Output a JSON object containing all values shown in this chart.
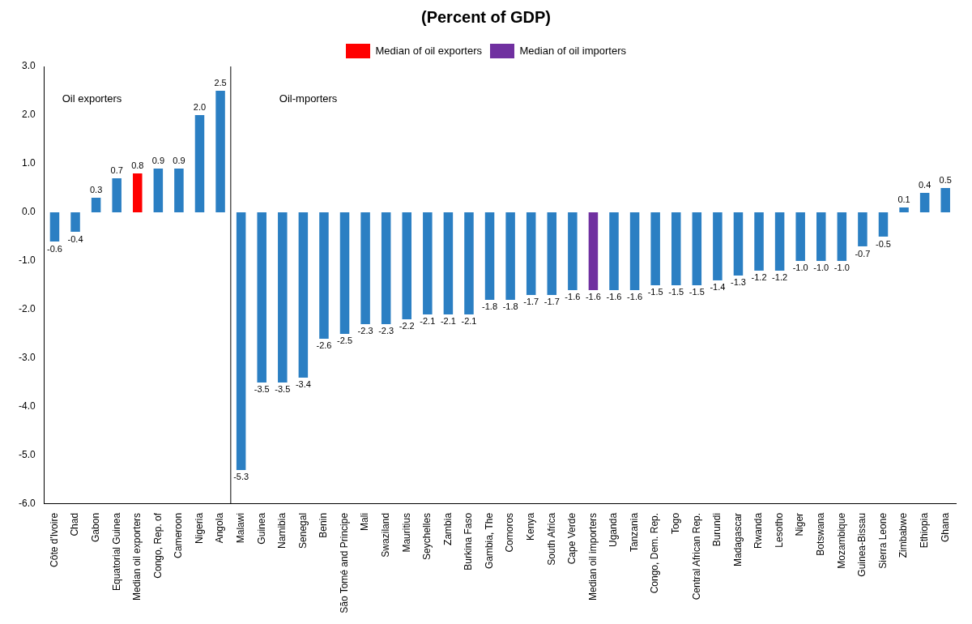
{
  "chart_data": {
    "type": "bar",
    "title": "(Percent of GDP)",
    "categories": [
      "Côte d'Ivoire",
      "Chad",
      "Gabon",
      "Equatorial Guinea",
      "Median oil exporters",
      "Congo, Rep. of",
      "Cameroon",
      "Nigeria",
      "Angola",
      "Malawi",
      "Guinea",
      "Namibia",
      "Senegal",
      "Benin",
      "São Tomé and Principe",
      "Mali",
      "Swaziland",
      "Mauritius",
      "Seychelles",
      "Zambia",
      "Burkina Faso",
      "Gambia, The",
      "Comoros",
      "Kenya",
      "South Africa",
      "Cape Verde",
      "Median oil importers",
      "Uganda",
      "Tanzania",
      "Congo, Dem. Rep.",
      "Togo",
      "Central African Rep.",
      "Burundi",
      "Madagascar",
      "Rwanda",
      "Lesotho",
      "Niger",
      "Botswana",
      "Mozambique",
      "Guinea-Bissau",
      "Sierra Leone",
      "Zimbabwe",
      "Ethiopia",
      "Ghana"
    ],
    "series": [
      {
        "color": "#2b7fc3",
        "values": [
          -0.6,
          -0.4,
          0.3,
          0.7,
          null,
          0.9,
          0.9,
          2.0,
          2.5,
          -5.3,
          -3.5,
          -3.5,
          -3.4,
          -2.6,
          -2.5,
          -2.3,
          -2.3,
          -2.2,
          -2.1,
          -2.1,
          -2.1,
          -1.8,
          -1.8,
          -1.7,
          -1.7,
          -1.6,
          null,
          -1.6,
          -1.6,
          -1.5,
          -1.5,
          -1.5,
          -1.4,
          -1.3,
          -1.2,
          -1.2,
          -1.0,
          -1.0,
          -1.0,
          -0.7,
          -0.5,
          0.1,
          0.4,
          0.5
        ],
        "value_labels": [
          "-0.6",
          "-0.4",
          "0.3",
          "0.7",
          null,
          "0.9",
          "0.9",
          "2.0",
          "2.5",
          "-5.3",
          "-3.5",
          "-3.5",
          "-3.4",
          "-2.6",
          "-2.5",
          "-2.3",
          "-2.3",
          "-2.2",
          "-2.1",
          "-2.1",
          "-2.1",
          "-1.8",
          "-1.8",
          "-1.7",
          "-1.7",
          "-1.6",
          null,
          "-1.6",
          "-1.6",
          "-1.5",
          "-1.5",
          "-1.5",
          "-1.4",
          "-1.3",
          "-1.2",
          "-1.2",
          "-1.0",
          "-1.0",
          "-1.0",
          "-0.7",
          "-0.5",
          "0.1",
          "0.4",
          "0.5"
        ]
      },
      {
        "name": "Median of oil exporters",
        "color": "#ff0000",
        "value_labels": [
          null,
          null,
          null,
          null,
          "0.8",
          null,
          null,
          null,
          null,
          null,
          null,
          null,
          null,
          null,
          null,
          null,
          null,
          null,
          null,
          null,
          null,
          null,
          null,
          null,
          null,
          null,
          null,
          null,
          null,
          null,
          null,
          null,
          null,
          null,
          null,
          null,
          null,
          null,
          null,
          null,
          null,
          null,
          null,
          null
        ],
        "values": [
          null,
          null,
          null,
          null,
          0.8,
          null,
          null,
          null,
          null,
          null,
          null,
          null,
          null,
          null,
          null,
          null,
          null,
          null,
          null,
          null,
          null,
          null,
          null,
          null,
          null,
          null,
          null,
          null,
          null,
          null,
          null,
          null,
          null,
          null,
          null,
          null,
          null,
          null,
          null,
          null,
          null,
          null,
          null,
          null
        ]
      },
      {
        "name": "Median of oil importers",
        "color": "#7030a0",
        "value_labels": [
          null,
          null,
          null,
          null,
          null,
          null,
          null,
          null,
          null,
          null,
          null,
          null,
          null,
          null,
          null,
          null,
          null,
          null,
          null,
          null,
          null,
          null,
          null,
          null,
          null,
          null,
          "-1.6",
          null,
          null,
          null,
          null,
          null,
          null,
          null,
          null,
          null,
          null,
          null,
          null,
          null,
          null,
          null,
          null,
          null
        ],
        "values": [
          null,
          null,
          null,
          null,
          null,
          null,
          null,
          null,
          null,
          null,
          null,
          null,
          null,
          null,
          null,
          null,
          null,
          null,
          null,
          null,
          null,
          null,
          null,
          null,
          null,
          null,
          -1.6,
          null,
          null,
          null,
          null,
          null,
          null,
          null,
          null,
          null,
          null,
          null,
          null,
          null,
          null,
          null,
          null,
          null
        ]
      }
    ],
    "ylim": [
      -6,
      3
    ],
    "yticks": [
      {
        "value": -6,
        "label": "-6.0"
      },
      {
        "value": -5,
        "label": "-5.0"
      },
      {
        "value": -4,
        "label": "-4.0"
      },
      {
        "value": -3,
        "label": "-3.0"
      },
      {
        "value": -2,
        "label": "-2.0"
      },
      {
        "value": -1,
        "label": "-1.0"
      },
      {
        "value": 0,
        "label": "0.0"
      },
      {
        "value": 1,
        "label": "1.0"
      },
      {
        "value": 2,
        "label": "2.0"
      },
      {
        "value": 3,
        "label": "3.0"
      }
    ],
    "grid": false,
    "legend": "top",
    "annotations": [
      "Oil exporters",
      "Oil-mporters"
    ]
  }
}
